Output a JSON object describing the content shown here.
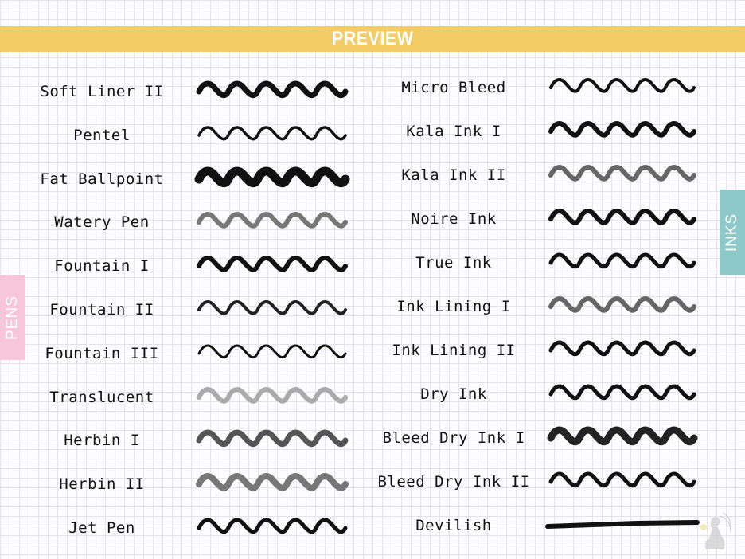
{
  "header": {
    "title": "PREVIEW",
    "color": "#f3cb67"
  },
  "tabs": {
    "pens": {
      "label": "PENS",
      "color": "#f7c6d9"
    },
    "inks": {
      "label": "INKS",
      "color": "#8ec9c9"
    }
  },
  "pens": [
    {
      "label": "Soft Liner II",
      "color": "#111111"
    },
    {
      "label": "Pentel",
      "color": "#111111"
    },
    {
      "label": "Fat Ballpoint",
      "color": "#111111"
    },
    {
      "label": "Watery Pen",
      "color": "#777777"
    },
    {
      "label": "Fountain I",
      "color": "#111111"
    },
    {
      "label": "Fountain II",
      "color": "#222222"
    },
    {
      "label": "Fountain III",
      "color": "#111111"
    },
    {
      "label": "Translucent",
      "color": "#aaaaaa"
    },
    {
      "label": "Herbin I",
      "color": "#555555"
    },
    {
      "label": "Herbin II",
      "color": "#777777"
    },
    {
      "label": "Jet Pen",
      "color": "#111111"
    }
  ],
  "inks": [
    {
      "label": "Micro Bleed",
      "color": "#111111"
    },
    {
      "label": "Kala Ink I",
      "color": "#111111"
    },
    {
      "label": "Kala Ink II",
      "color": "#666666"
    },
    {
      "label": "Noire Ink",
      "color": "#111111"
    },
    {
      "label": "True Ink",
      "color": "#111111"
    },
    {
      "label": "Ink Lining I",
      "color": "#666666"
    },
    {
      "label": "Ink Lining II",
      "color": "#111111"
    },
    {
      "label": "Dry Ink",
      "color": "#111111"
    },
    {
      "label": "Bleed Dry Ink I",
      "color": "#222222"
    },
    {
      "label": "Bleed Dry Ink II",
      "color": "#111111"
    },
    {
      "label": "Devilish",
      "color": "#111111"
    }
  ]
}
